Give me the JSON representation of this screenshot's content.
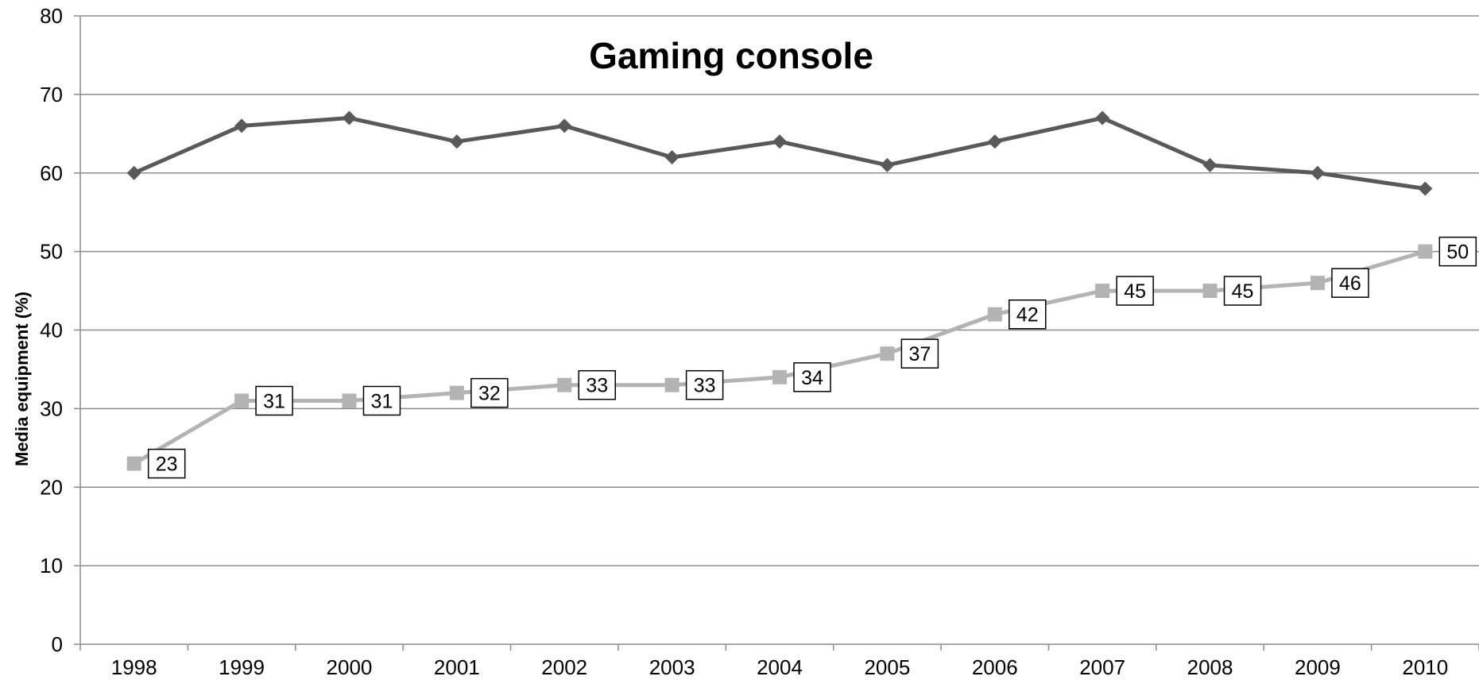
{
  "chart_data": {
    "type": "line",
    "title": "Gaming console",
    "xlabel": "",
    "ylabel": "Media equipment (%)",
    "ylim": [
      0,
      80
    ],
    "yticks": [
      0,
      10,
      20,
      30,
      40,
      50,
      60,
      70,
      80
    ],
    "grid": true,
    "categories": [
      "1998",
      "1999",
      "2000",
      "2001",
      "2002",
      "2003",
      "2004",
      "2005",
      "2006",
      "2007",
      "2008",
      "2009",
      "2010"
    ],
    "series": [
      {
        "marker": "diamond",
        "color": "#595959",
        "values": [
          60,
          66,
          67,
          64,
          66,
          62,
          64,
          61,
          64,
          67,
          61,
          60,
          58
        ],
        "data_labels": false
      },
      {
        "marker": "square",
        "color": "#b3b3b3",
        "values": [
          23,
          31,
          31,
          32,
          33,
          33,
          34,
          37,
          42,
          45,
          45,
          46,
          50
        ],
        "data_labels": true
      }
    ]
  }
}
